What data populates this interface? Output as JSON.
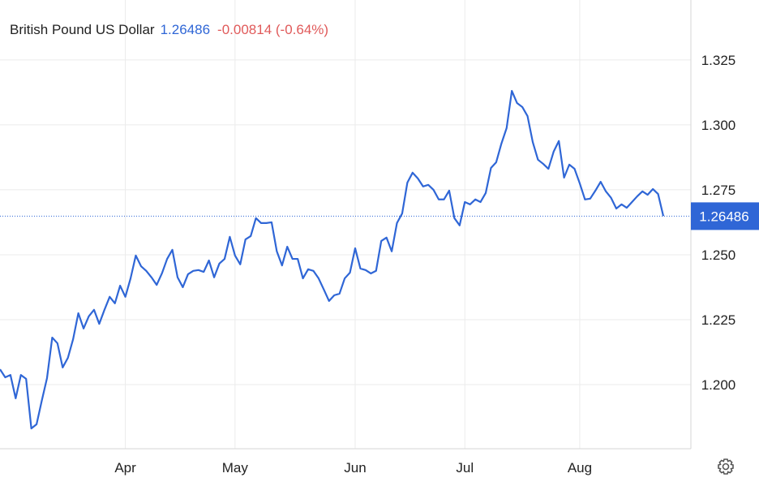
{
  "chart_data": {
    "type": "line",
    "title": "British Pound US Dollar",
    "last_value": 1.26486,
    "change": "-0.00814 (-0.64%)",
    "color": "#2f66d6",
    "grid": true,
    "categories": [
      null,
      null,
      null,
      null,
      null,
      null,
      null,
      null,
      null,
      null,
      null,
      null,
      null,
      null,
      null,
      null,
      null,
      null,
      null,
      null,
      null,
      null,
      null,
      null,
      "Apr",
      null,
      null,
      null,
      null,
      null,
      null,
      null,
      null,
      null,
      null,
      null,
      null,
      null,
      null,
      null,
      null,
      null,
      null,
      null,
      null,
      "May",
      null,
      null,
      null,
      null,
      null,
      null,
      null,
      null,
      null,
      null,
      null,
      null,
      null,
      null,
      null,
      null,
      null,
      null,
      null,
      null,
      null,
      null,
      "Jun",
      null,
      null,
      null,
      null,
      null,
      null,
      null,
      null,
      null,
      null,
      null,
      null,
      null,
      null,
      null,
      null,
      null,
      null,
      null,
      null,
      "Jul",
      null,
      null,
      null,
      null,
      null,
      null,
      null,
      null,
      null,
      null,
      null,
      null,
      null,
      null,
      null,
      null,
      null,
      null,
      null,
      null,
      null,
      "Aug",
      null,
      null,
      null,
      null,
      null,
      null,
      null,
      null,
      null,
      null,
      null,
      null,
      null,
      null,
      null,
      null
    ],
    "values": [
      1.2059,
      1.2028,
      1.2037,
      1.1947,
      1.2037,
      1.2022,
      1.1831,
      1.1847,
      1.1938,
      1.2025,
      1.2181,
      1.2159,
      1.2066,
      1.2103,
      1.2175,
      1.2275,
      1.2216,
      1.2263,
      1.2288,
      1.2234,
      1.2288,
      1.2338,
      1.2313,
      1.2381,
      1.2338,
      1.2409,
      1.2497,
      1.2456,
      1.2438,
      1.2413,
      1.2384,
      1.2428,
      1.2484,
      1.2519,
      1.2413,
      1.2375,
      1.2425,
      1.2438,
      1.2441,
      1.2434,
      1.2478,
      1.2413,
      1.2466,
      1.2484,
      1.2569,
      1.2497,
      1.2463,
      1.2559,
      1.2572,
      1.2641,
      1.2622,
      1.2622,
      1.2625,
      1.2513,
      1.2459,
      1.2531,
      1.2484,
      1.2484,
      1.2409,
      1.2444,
      1.2438,
      1.2409,
      1.2366,
      1.2322,
      1.2344,
      1.235,
      1.2409,
      1.2431,
      1.2525,
      1.2447,
      1.2441,
      1.2428,
      1.2438,
      1.2553,
      1.2566,
      1.2513,
      1.2622,
      1.2659,
      1.2778,
      1.2816,
      1.2794,
      1.2763,
      1.2769,
      1.275,
      1.2713,
      1.2713,
      1.2747,
      1.2641,
      1.2613,
      1.2703,
      1.2694,
      1.2713,
      1.2703,
      1.2738,
      1.2834,
      1.2856,
      1.2928,
      1.2988,
      1.3131,
      1.3084,
      1.3069,
      1.3034,
      1.2934,
      1.2866,
      1.285,
      1.2831,
      1.2897,
      1.2938,
      1.2797,
      1.2847,
      1.2831,
      1.2775,
      1.2713,
      1.2716,
      1.2747,
      1.2781,
      1.2744,
      1.2719,
      1.2678,
      1.2694,
      1.2681,
      1.2703,
      1.2725,
      1.2744,
      1.2731,
      1.2753,
      1.2734,
      1.2649
    ],
    "ylim": [
      1.1753,
      1.3481
    ],
    "yticks": [
      {
        "value": 1.2,
        "label": "1.200"
      },
      {
        "value": 1.225,
        "label": "1.225"
      },
      {
        "value": 1.25,
        "label": "1.250"
      },
      {
        "value": 1.275,
        "label": "1.275"
      },
      {
        "value": 1.3,
        "label": "1.300"
      },
      {
        "value": 1.325,
        "label": "1.325"
      }
    ]
  }
}
